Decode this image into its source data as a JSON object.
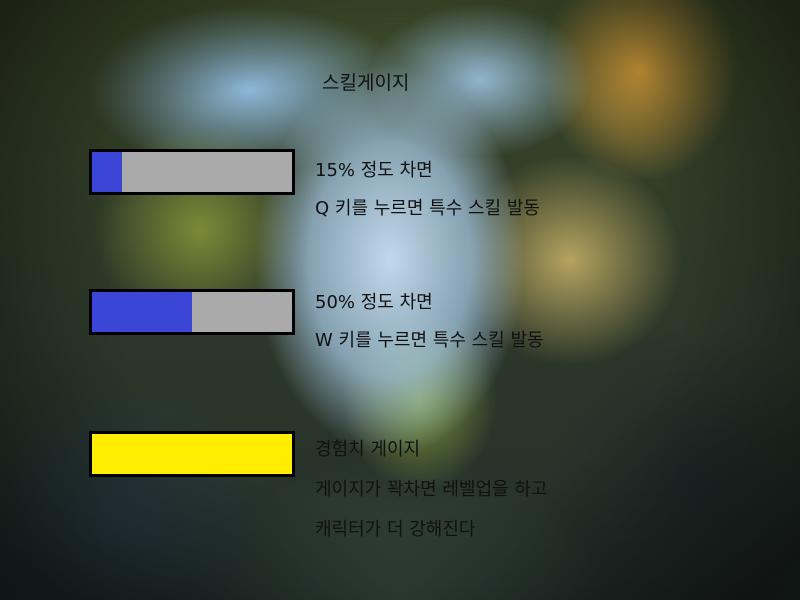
{
  "title": "스킬게이지",
  "gauges": [
    {
      "name": "skill-q",
      "fill_fraction": 0.15,
      "fill_color": "#3b46d6",
      "track_color": "#aaaaaa",
      "lines": [
        "15% 정도 차면",
        "Q 키를 누르면 특수 스킬 발동"
      ]
    },
    {
      "name": "skill-w",
      "fill_fraction": 0.5,
      "fill_color": "#3b46d6",
      "track_color": "#aaaaaa",
      "lines": [
        "50% 정도 차면",
        "W 키를 누르면 특수 스킬 발동"
      ]
    },
    {
      "name": "experience",
      "fill_fraction": 1.0,
      "fill_color": "#ffee00",
      "track_color": "#ffee00",
      "lines": [
        "경험치 게이지",
        "게이지가 꽉차면 레벨업을 하고",
        "캐릭터가 더 강해진다"
      ]
    }
  ]
}
